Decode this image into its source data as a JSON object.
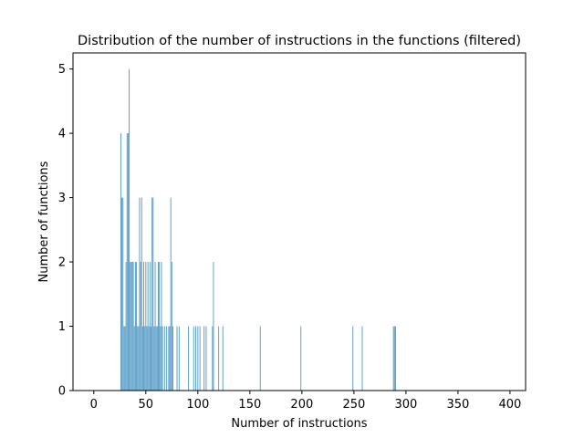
{
  "chart_data": {
    "type": "bar",
    "title": "Distribution of the number of instructions in the functions (filtered)",
    "xlabel": "Number of instructions",
    "ylabel": "Number of functions",
    "xlim": [
      -20,
      415
    ],
    "ylim": [
      0,
      5.25
    ],
    "xticks": [
      0,
      50,
      100,
      150,
      200,
      250,
      300,
      350,
      400
    ],
    "yticks": [
      0,
      1,
      2,
      3,
      4,
      5
    ],
    "grid": false,
    "bar_color": "#5b9ec9",
    "x": [
      26,
      27,
      28,
      29,
      30,
      31,
      32,
      33,
      34,
      35,
      36,
      37,
      38,
      39,
      40,
      41,
      42,
      43,
      44,
      45,
      46,
      47,
      48,
      49,
      50,
      51,
      52,
      53,
      54,
      55,
      56,
      57,
      58,
      59,
      60,
      61,
      62,
      63,
      64,
      65,
      66,
      68,
      70,
      72,
      73,
      74,
      75,
      76,
      80,
      82,
      91,
      96,
      98,
      100,
      102,
      106,
      108,
      114,
      115,
      120,
      124,
      160,
      199,
      249,
      258,
      288,
      289,
      290
    ],
    "values": [
      4,
      3,
      3,
      1,
      1,
      2,
      4,
      4,
      5,
      2,
      2,
      2,
      2,
      1,
      2,
      2,
      1,
      1,
      3,
      2,
      3,
      1,
      2,
      1,
      2,
      1,
      2,
      1,
      2,
      1,
      3,
      3,
      1,
      2,
      1,
      1,
      2,
      2,
      1,
      2,
      1,
      1,
      1,
      1,
      1,
      3,
      2,
      1,
      1,
      1,
      1,
      1,
      1,
      1,
      1,
      1,
      1,
      1,
      2,
      1,
      1,
      1,
      1,
      1,
      1,
      1,
      1,
      1
    ]
  }
}
